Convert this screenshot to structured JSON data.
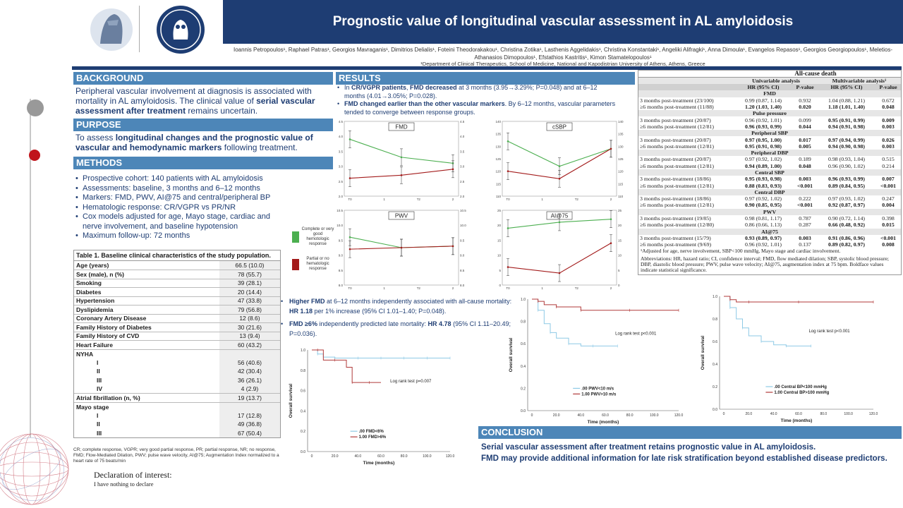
{
  "title": "Prognostic value of longitudinal vascular assessment in AL amyloidosis",
  "authors": "Ioannis Petropoulos¹, Raphael Patras¹, Georgios Mavraganis¹, Dimitrios Delialis¹, Foteini Theodorakakou¹, Christina Zotika¹, Lasthenis Aggelidakis¹, Christina Konstantaki¹, Angeliki Alifragki¹, Anna Dimoula¹, Evangelos Repasos¹, Georgios Georgiopoulos¹, Meletios-Athanasios Dimopoulos¹, Efstathios Kastritis¹, Kimon Stamatelopoulos¹",
  "affiliation": "¹Department of Clinical Therapeutics, School of Medicine, National and Kapodistrian University of Athens, Athens, Greece",
  "background": {
    "heading": "BACKGROUND",
    "t1": "Peripheral vascular involvement at diagnosis is associated with mortality in AL amyloidosis. The clinical value of ",
    "b1": "serial vascular assessment after treatment",
    "t2": " remains uncertain."
  },
  "purpose": {
    "heading": "PURPOSE",
    "t1": "To assess ",
    "b1": "longitudinal changes and the prognostic value of vascular and hemodynamic markers",
    "t2": " following treatment."
  },
  "methods": {
    "heading": "METHODS",
    "items": [
      "Prospective cohort: 140 patients with AL amyloidosis",
      "Assessments: baseline, 3 months and 6–12 months",
      "Markers: FMD, PWV, AI@75 and central/peripheral BP",
      "Hematologic response: CR/VGPR vs PR/NR",
      "Cox models adjusted for age, Mayo stage, cardiac and nerve involvement, and baseline hypotension",
      "Maximum follow-up: 72 months"
    ]
  },
  "table1": {
    "caption": "Table 1. Baseline clinical characteristics of the study population.",
    "rows": [
      {
        "label": "Age (years)",
        "value": "66.5 (10.0)"
      },
      {
        "label": "Sex (male), n (%)",
        "value": "78 (55.7)"
      },
      {
        "label": "Smoking",
        "value": "39 (28.1)"
      },
      {
        "label": "Diabetes",
        "value": "20 (14.4)"
      },
      {
        "label": "Hypertension",
        "value": "47 (33.8)"
      },
      {
        "label": "Dyslipidemia",
        "value": "79 (56.8)"
      },
      {
        "label": "Coronary Artery Disease",
        "value": "12 (8.6)"
      },
      {
        "label": "Family History of Diabetes",
        "value": "30 (21.6)"
      },
      {
        "label": "Family History of CVD",
        "value": "13 (9.4)"
      },
      {
        "label": "Heart Failure",
        "value": "60 (43.2)"
      }
    ],
    "nyha_label": "NYHA",
    "nyha": [
      {
        "label": "I",
        "value": "56 (40.6)"
      },
      {
        "label": "II",
        "value": "42 (30.4)"
      },
      {
        "label": "III",
        "value": "36 (26.1)"
      },
      {
        "label": "IV",
        "value": "4 (2.9)"
      }
    ],
    "af": {
      "label": "Atrial fibrillation (n, %)",
      "value": "19 (13.7)"
    },
    "mayo_label": "Mayo stage",
    "mayo": [
      {
        "label": "I",
        "value": "17 (12.8)"
      },
      {
        "label": "II",
        "value": "49 (36.8)"
      },
      {
        "label": "III",
        "value": "67 (50.4)"
      }
    ]
  },
  "abbrev1": "CR; complete response, VGPR; very good partial response, PR; partial response, NR; no response, FMD; Flow-Mediated Dilation, PWV; pulse wave velocity, AI@75; Augmentation Index normalized to a heart rate of 75 beats/min",
  "declaration": {
    "title": "Declaration of interest:",
    "body": "I have nothing to declare"
  },
  "results": {
    "heading": "RESULTS",
    "b1a": "In ",
    "b1b": "CR/VGPR patients",
    "b1c": ", ",
    "b1d": "FMD decreased",
    "b1e": " at 3 months (3.95→3.29%; P=0.048) and at 6–12 months (4.01→3.05%; P=0.028).",
    "b2a": "FMD changed earlier than the other vascular markers",
    "b2b": ". By 6–12 months, vascular parameters tended to converge between response groups."
  },
  "legend_groups": {
    "green": "Complete or very good hemotologic response",
    "red": "Partial or no hematologic response"
  },
  "panels": [
    {
      "title": "FMD",
      "yticks_l": [
        "4.5",
        "4.0",
        "3.5",
        "3.0",
        "2.5",
        "2.0"
      ],
      "yticks_r": [
        "4.5",
        "4.0",
        "3.5",
        "3.0",
        "2.5",
        "2.0"
      ],
      "xticks": [
        "T0",
        "1",
        "T2",
        "2"
      ]
    },
    {
      "title": "cSBP",
      "yticks_l": [
        "140",
        "135",
        "130",
        "125",
        "120",
        "115",
        "110"
      ],
      "yticks_r": [
        "140",
        "135",
        "130",
        "125",
        "120",
        "115",
        "110"
      ],
      "xticks": [
        "T0",
        "1",
        "T2",
        "2"
      ]
    },
    {
      "title": "PWV",
      "yticks_l": [
        "10.5",
        "10.0",
        "9.5",
        "9.0",
        "8.5",
        "8.0"
      ],
      "yticks_r": [
        "10.5",
        "10.0",
        "9.5",
        "9.0",
        "8.5",
        "8.0"
      ],
      "xticks": [
        "T0",
        "1",
        "T2",
        "2"
      ]
    },
    {
      "title": "AI@75",
      "yticks_l": [
        "25",
        "20",
        "15",
        "10",
        "5",
        "0"
      ],
      "yticks_r": [
        "25",
        "20",
        "15",
        "10",
        "5",
        "0"
      ],
      "xticks": [
        "T0",
        "1",
        "T2",
        "2"
      ]
    }
  ],
  "chart_data": [
    {
      "type": "line",
      "title": "FMD",
      "categories": [
        "T0",
        "T1",
        "T2"
      ],
      "series": [
        {
          "values": [
            3.9,
            3.3,
            3.1
          ]
        },
        {
          "values": [
            2.6,
            2.7,
            2.9
          ]
        }
      ],
      "ylim": [
        2.0,
        4.5
      ]
    },
    {
      "type": "line",
      "title": "cSBP",
      "categories": [
        "T0",
        "T1",
        "T2"
      ],
      "series": [
        {
          "values": [
            132,
            122,
            129
          ]
        },
        {
          "values": [
            120,
            117,
            129
          ]
        }
      ],
      "ylim": [
        110,
        140
      ]
    },
    {
      "type": "line",
      "title": "PWV",
      "categories": [
        "T0",
        "T1",
        "T2"
      ],
      "series": [
        {
          "values": [
            9.6,
            9.25,
            9.3
          ]
        },
        {
          "values": [
            9.2,
            9.25,
            9.3
          ]
        }
      ],
      "ylim": [
        8.0,
        10.5
      ]
    },
    {
      "type": "line",
      "title": "AI@75",
      "categories": [
        "T0",
        "T1",
        "T2"
      ],
      "series": [
        {
          "values": [
            19,
            21,
            22
          ]
        },
        {
          "values": [
            6,
            4,
            14
          ]
        }
      ],
      "ylim": [
        0,
        25
      ]
    },
    {
      "type": "line",
      "title": "",
      "xlabel": "Time (months)",
      "ylabel": "Overall survival",
      "logrank": "Log rank test p=0.007",
      "series": [
        {
          "name": "FMD<6%",
          "x": [
            0,
            5,
            10,
            20,
            30,
            40,
            50,
            60,
            70,
            80,
            90,
            100,
            110,
            120
          ],
          "y": [
            1.0,
            0.96,
            0.93,
            0.92,
            0.92,
            0.92,
            0.92,
            0.92,
            0.92,
            0.92,
            0.92,
            0.92,
            0.92,
            0.92
          ]
        },
        {
          "name": "FMD>6%",
          "x": [
            0,
            5,
            10,
            20,
            30,
            35,
            40,
            50,
            60
          ],
          "y": [
            1.0,
            1.0,
            0.9,
            0.9,
            0.83,
            0.68,
            0.68,
            0.68,
            0.68
          ]
        }
      ],
      "xlim": [
        0,
        120
      ],
      "ylim": [
        0,
        1.0
      ]
    },
    {
      "type": "line",
      "title": "",
      "xlabel": "Time (months)",
      "ylabel": "Overall survival",
      "logrank": "Log rank test p<0.001",
      "series": [
        {
          "name": "PWV<10 m/s",
          "x": [
            0,
            5,
            10,
            15,
            20,
            30,
            40,
            50,
            60,
            70
          ],
          "y": [
            1.0,
            0.9,
            0.78,
            0.7,
            0.65,
            0.6,
            0.58,
            0.58,
            0.58,
            0.58
          ]
        },
        {
          "name": "PWV>10 m/s",
          "x": [
            0,
            5,
            10,
            20,
            30,
            40,
            60,
            80,
            100,
            120
          ],
          "y": [
            1.0,
            0.98,
            0.95,
            0.93,
            0.93,
            0.9,
            0.9,
            0.9,
            0.9,
            0.9
          ]
        }
      ],
      "xlim": [
        0,
        120
      ],
      "ylim": [
        0,
        1.0
      ]
    },
    {
      "type": "line",
      "title": "",
      "xlabel": "Time (months)",
      "ylabel": "Overall survival",
      "logrank": "Log rank test p<0.001",
      "series": [
        {
          "name": "Central BP<100 mmHg",
          "x": [
            0,
            5,
            10,
            15,
            20,
            30,
            40,
            50,
            60,
            70
          ],
          "y": [
            1.0,
            0.9,
            0.8,
            0.72,
            0.65,
            0.6,
            0.57,
            0.56,
            0.56,
            0.56
          ]
        },
        {
          "name": "Central BP>100 mmHg",
          "x": [
            0,
            5,
            10,
            20,
            30,
            60,
            90,
            120
          ],
          "y": [
            1.0,
            0.97,
            0.95,
            0.95,
            0.95,
            0.95,
            0.95,
            0.95
          ]
        }
      ],
      "xlim": [
        0,
        120
      ],
      "ylim": [
        0,
        1.0
      ]
    }
  ],
  "results2": {
    "a1": "Higher FMD",
    "a2": " at 6–12 months independently associated with all-cause mortality: ",
    "a3": "HR 1.18",
    "a4": " per 1% increase (95% CI 1.01–1.40; P=0.048).",
    "c1": "FMD ≥6%",
    "c2": " independently predicted late mortality: ",
    "c3": "HR 4.78",
    "c4": " (95% CI 1.11–20.49; P=0.036)."
  },
  "km": [
    {
      "legend": [
        ".00  FMD<6%",
        "1.00  FMD>6%"
      ],
      "xticks": [
        "0",
        "20.0",
        "40.0",
        "60.0",
        "80.0",
        "100.0",
        "120.0"
      ],
      "yticks": [
        "1.0",
        "0.8",
        "0.6",
        "0.4",
        "0.2",
        "0.0"
      ],
      "xlabel": "Time (months)",
      "ylabel": "Overall survival",
      "logrank": "Log rank test p=0.007"
    },
    {
      "legend": [
        ".00  PWV<10 m/s",
        "1.00  PWV>10 m/s"
      ],
      "xticks": [
        "0",
        "20.0",
        "40.0",
        "60.0",
        "80.0",
        "100.0",
        "120.0"
      ],
      "yticks": [
        "1.0",
        "0.8",
        "0.6",
        "0.4",
        "0.2",
        "0.0"
      ],
      "xlabel": "Time (months)",
      "ylabel": "Overall survival",
      "logrank": "Log rank test p<0.001"
    },
    {
      "legend": [
        ".00  Central BP<100 mmHg",
        "1.00  Central BP>100 mmHg"
      ],
      "xticks": [
        "0",
        "20.0",
        "40.0",
        "60.0",
        "80.0",
        "100.0",
        "120.0"
      ],
      "yticks": [
        "1.0",
        "0.8",
        "0.6",
        "0.4",
        "0.2",
        "0.0"
      ],
      "xlabel": "Time (months)",
      "ylabel": "Overall survival",
      "logrank": "Log rank test p<0.001"
    }
  ],
  "table2": {
    "title": "All-cause death",
    "uni": "Univariable analysis",
    "multi": "Multivariable analysis¹",
    "hr": "HR (95% CI)",
    "p": "P-value",
    "groups": [
      {
        "name": "FMD",
        "rows": [
          [
            "3 months post-treatment (23/100)",
            "0.99 (0.87, 1.14)",
            "0.932",
            "1.04 (0.88, 1.21)",
            "0.672",
            0
          ],
          [
            "≥6 months post-treatment (11/88)",
            "1.20 (1.03, 1.40)",
            "0.020",
            "1.18 (1.01, 1.40)",
            "0.048",
            1
          ]
        ]
      },
      {
        "name": "Pulse pressure",
        "rows": [
          [
            "3 months post-treatment (20/87)",
            "0.96 (0.92, 1.01)",
            "0.099",
            "0.95 (0.91, 0.99)",
            "0.009",
            2
          ],
          [
            "≥6 months post-treatment (12/81)",
            "0.96 (0.93, 0.99)",
            "0.044",
            "0.94 (0.91, 0.98)",
            "0.003",
            1
          ]
        ]
      },
      {
        "name": "Peripheral SBP",
        "rows": [
          [
            "3 months post-treatment (20/87)",
            "0.97 (0.95, 1.00)",
            "0.017",
            "0.97 (0.94, 0.99)",
            "0.026",
            1
          ],
          [
            "≥6 months post-treatment (12/81)",
            "0.95 (0.91, 0.98)",
            "0.005",
            "0.94 (0.90, 0.98)",
            "0.003",
            1
          ]
        ]
      },
      {
        "name": "Peripheral DBP",
        "rows": [
          [
            "3 months post-treatment (20/87)",
            "0.97 (0.92, 1.02)",
            "0.189",
            "0.98 (0.93, 1.04)",
            "0.515",
            0
          ],
          [
            "≥6 months post-treatment (12/81)",
            "0.94 (0.89, 1.00)",
            "0.048",
            "0.96 (0.90, 1.02)",
            "0.214",
            3
          ]
        ]
      },
      {
        "name": "Central SBP",
        "rows": [
          [
            "3 months post-treatment (18/86)",
            "0.95 (0.93, 0.98)",
            "0.003",
            "0.96 (0.93, 0.99)",
            "0.007",
            1
          ],
          [
            "≥6 months post-treatment (12/81)",
            "0.88 (0.83, 0.93)",
            "<0.001",
            "0.89 (0.84, 0.95)",
            "<0.001",
            1
          ]
        ]
      },
      {
        "name": "Central DBP",
        "rows": [
          [
            "3 months post-treatment (18/86)",
            "0.97 (0.92, 1.02)",
            "0.222",
            "0.97 (0.93, 1.02)",
            "0.247",
            0
          ],
          [
            "≥6 months post-treatment (12/81)",
            "0.90 (0.85, 0.95)",
            "<0.001",
            "0.92 (0.87, 0.97)",
            "0.004",
            1
          ]
        ]
      },
      {
        "name": "PWV",
        "rows": [
          [
            "3 months post-treatment (19/85)",
            "0.98 (0.81, 1.17)",
            "0.787",
            "0.90 (0.72, 1.14)",
            "0.398",
            0
          ],
          [
            "≥6 months post-treatment (12/80)",
            "0.86 (0.66, 1.13)",
            "0.287",
            "0.66 (0.48, 0.92)",
            "0.015",
            2
          ]
        ]
      },
      {
        "name": "AI@75",
        "rows": [
          [
            "3 months post-treatment (15/79)",
            "0.93 (0.89, 0.97)",
            "0.003",
            "0.91 (0.86, 0.96)",
            "<0.001",
            1
          ],
          [
            "≥6 months post-treatment (9/69)",
            "0.96 (0.92, 1.01)",
            "0.137",
            "0.89 (0.82, 0.97)",
            "0.008",
            2
          ]
        ]
      }
    ],
    "footnote1": "¹Adjusted for age, nerve involvement, SBP<100 mmHg, Mayo stage and cardiac involvement.",
    "footnote2": "Abbreviations: HR, hazard ratio; CI, confidence interval; FMD, flow mediated dilation; SBP, systolic blood pressure; DBP, diastolic blood pressure; PWV, pulse wave velocity; AI@75, augmentation index at 75 bpm. Boldface values indicate statistical significance."
  },
  "conclusion": {
    "heading": "CONCLUSION",
    "l1": "Serial vascular assessment after treatment retains prognostic value in AL amyloidosis.",
    "l2": "FMD may provide additional information for late risk stratification beyond established disease predictors."
  },
  "colors": {
    "navy": "#1e3d73",
    "section": "#4d86b8",
    "green": "#4caf50",
    "red": "#a31b1b",
    "km_blue": "#8ecae6",
    "km_red": "#b03a3a"
  }
}
